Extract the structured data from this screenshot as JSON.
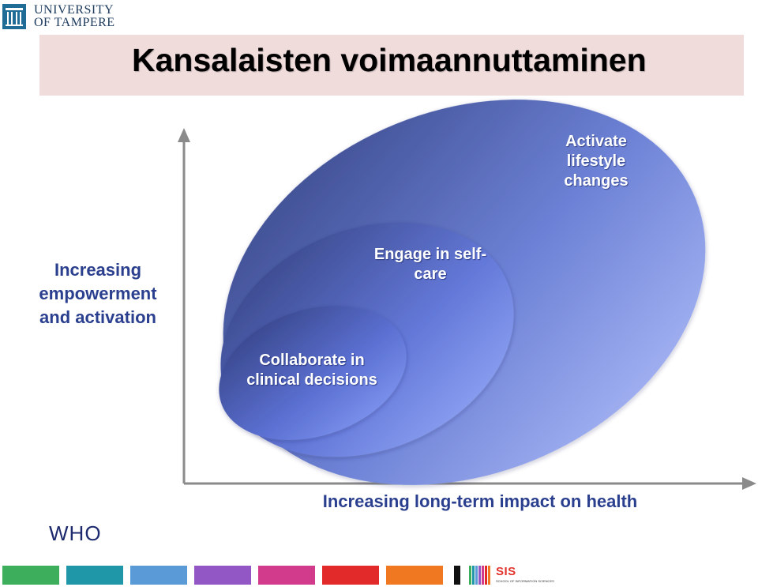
{
  "header": {
    "logo": {
      "line1": "UNIVERSITY",
      "line2": "OF TAMPERE"
    },
    "title": "Kansalaisten voimaannuttaminen"
  },
  "diagram": {
    "y_axis_label": "Increasing empowerment and activation",
    "x_axis_label": "Increasing long-term impact on health",
    "ellipses": [
      {
        "level": "outer",
        "label": "Activate lifestyle changes"
      },
      {
        "level": "middle",
        "label": "Engage in self-care"
      },
      {
        "level": "inner",
        "label": "Collaborate in clinical decisions"
      }
    ]
  },
  "source_note": "WHO",
  "footer": {
    "colors": [
      "#3dae5b",
      "#1f97a8",
      "#5a9ad6",
      "#9257c4",
      "#d23a8c",
      "#e32a2a",
      "#f07820",
      "#111111"
    ],
    "sis_logo": {
      "text": "SIS",
      "subtext": "SCHOOL OF INFORMATION SCIENCES"
    }
  }
}
